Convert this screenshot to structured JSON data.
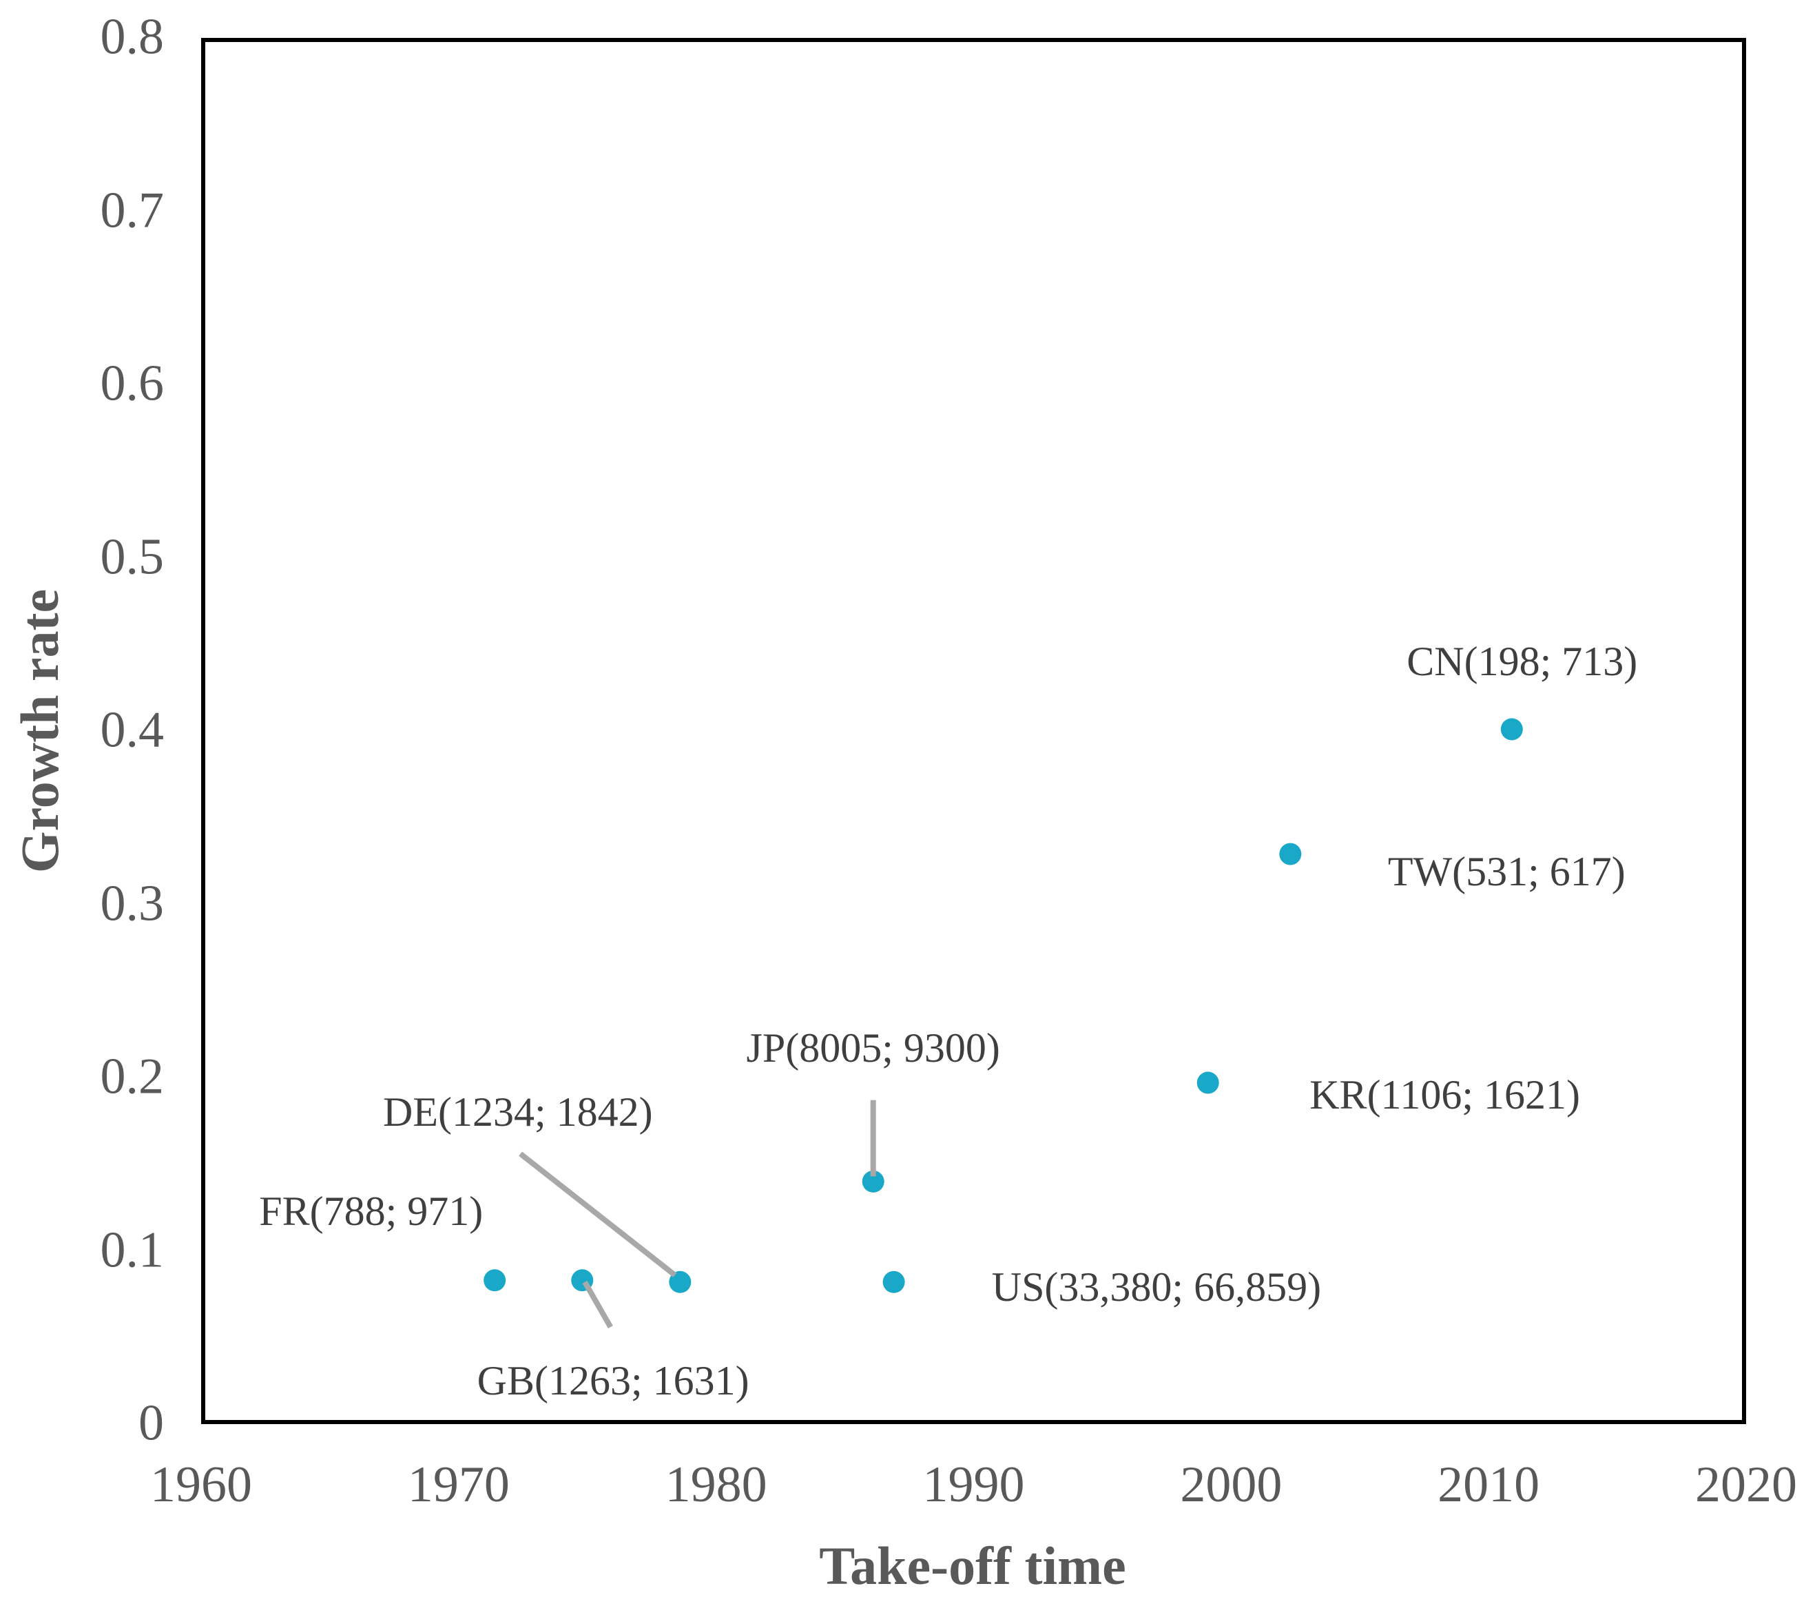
{
  "chart_data": {
    "type": "scatter",
    "title": "",
    "xlabel": "Take-off time",
    "ylabel": "Growth rate",
    "xlim": [
      1960,
      2020
    ],
    "ylim": [
      0,
      0.8
    ],
    "grid": false,
    "legend": "none",
    "x_ticks": [
      {
        "value": 1960,
        "label": "1960"
      },
      {
        "value": 1970,
        "label": "1970"
      },
      {
        "value": 1980,
        "label": "1980"
      },
      {
        "value": 1990,
        "label": "1990"
      },
      {
        "value": 2000,
        "label": "2000"
      },
      {
        "value": 2010,
        "label": "2010"
      },
      {
        "value": 2020,
        "label": "2020"
      }
    ],
    "y_ticks": [
      {
        "value": 0,
        "label": "0"
      },
      {
        "value": 0.1,
        "label": "0.1"
      },
      {
        "value": 0.2,
        "label": "0.2"
      },
      {
        "value": 0.3,
        "label": "0.3"
      },
      {
        "value": 0.4,
        "label": "0.4"
      },
      {
        "value": 0.5,
        "label": "0.5"
      },
      {
        "value": 0.6,
        "label": "0.6"
      },
      {
        "value": 0.7,
        "label": "0.7"
      },
      {
        "value": 0.8,
        "label": "0.8"
      }
    ],
    "points": [
      {
        "country": "FR",
        "label": "FR(788; 971)",
        "x": 1971.4,
        "y": 0.083,
        "label_x": 1966.6,
        "label_y": 0.123,
        "leader": null
      },
      {
        "country": "GB",
        "label": "GB(1263; 1631)",
        "x": 1974.8,
        "y": 0.083,
        "label_x": 1976.0,
        "label_y": 0.025,
        "leader": {
          "x1": 1974.9,
          "y1": 0.082,
          "x2": 1975.9,
          "y2": 0.056
        }
      },
      {
        "country": "DE",
        "label": "DE(1234; 1842)",
        "x": 1978.6,
        "y": 0.082,
        "label_x": 1972.3,
        "label_y": 0.18,
        "leader": {
          "x1": 1972.4,
          "y1": 0.156,
          "x2": 1978.4,
          "y2": 0.086
        }
      },
      {
        "country": "JP",
        "label": "JP(8005; 9300)",
        "x": 1986.1,
        "y": 0.14,
        "label_x": 1986.1,
        "label_y": 0.217,
        "leader": {
          "x1": 1986.1,
          "y1": 0.187,
          "x2": 1986.1,
          "y2": 0.143
        }
      },
      {
        "country": "US",
        "label": "US(33,380; 66,859)",
        "x": 1986.9,
        "y": 0.082,
        "label_x": 1997.1,
        "label_y": 0.079,
        "leader": null
      },
      {
        "country": "KR",
        "label": "KR(1106; 1621)",
        "x": 1999.1,
        "y": 0.197,
        "label_x": 2008.3,
        "label_y": 0.19,
        "leader": null
      },
      {
        "country": "TW",
        "label": "TW(531; 617)",
        "x": 2002.3,
        "y": 0.329,
        "label_x": 2010.7,
        "label_y": 0.319,
        "leader": null
      },
      {
        "country": "CN",
        "label": "CN(198; 713)",
        "x": 2010.9,
        "y": 0.401,
        "label_x": 2011.3,
        "label_y": 0.44,
        "leader": null
      }
    ],
    "colors": {
      "marker": "#1aa8c8",
      "label_text": "#3f3f3f",
      "tick_text": "#595959",
      "axis_title": "#595959",
      "axis_line": "#000000",
      "leader_line": "#a8a8a8",
      "background": "#ffffff"
    }
  }
}
